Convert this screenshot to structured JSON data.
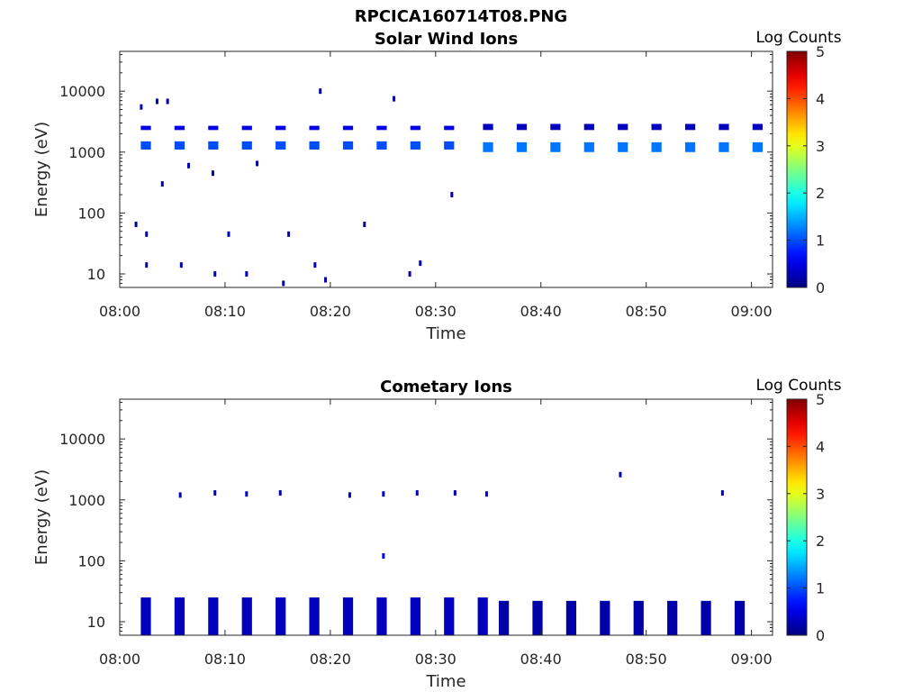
{
  "figure_title": "RPCICA160714T08.PNG",
  "chart_data": [
    {
      "type": "heatmap",
      "title": "Solar Wind Ions",
      "xlabel": "Time",
      "ylabel": "Energy (eV)",
      "x_range": [
        "08:00",
        "09:02"
      ],
      "x_ticks": [
        "08:00",
        "08:10",
        "08:20",
        "08:30",
        "08:40",
        "08:50",
        "09:00"
      ],
      "y_scale": "log",
      "y_range": [
        6,
        45000
      ],
      "y_ticks": [
        "10",
        "100",
        "1000",
        "10000"
      ],
      "colorbar": {
        "label": "Log Counts",
        "min": 0,
        "max": 5,
        "ticks": [
          "0",
          "1",
          "2",
          "3",
          "4",
          "5"
        ],
        "colormap": "jet"
      },
      "bands": [
        {
          "t_start": "08:02",
          "t_end": "08:32",
          "repeat_min": 3.2,
          "e_min": 1100,
          "e_max": 1500,
          "log_counts": 1.0
        },
        {
          "t_start": "08:02",
          "t_end": "08:32",
          "repeat_min": 3.2,
          "e_min": 2300,
          "e_max": 2700,
          "log_counts": 0.5
        },
        {
          "t_start": "08:34.5",
          "t_end": "09:01",
          "repeat_min": 3.2,
          "e_min": 1000,
          "e_max": 1450,
          "log_counts": 1.2
        },
        {
          "t_start": "08:34.5",
          "t_end": "09:01",
          "repeat_min": 3.2,
          "e_min": 2300,
          "e_max": 2900,
          "log_counts": 0.3
        }
      ],
      "sparse_points": [
        {
          "t": "08:01.5",
          "e": 65,
          "log_counts": 0.2
        },
        {
          "t": "08:02",
          "e": 5500,
          "log_counts": 0.2
        },
        {
          "t": "08:02.5",
          "e": 45,
          "log_counts": 0.3
        },
        {
          "t": "08:02.5",
          "e": 14,
          "log_counts": 0.3
        },
        {
          "t": "08:03.5",
          "e": 6800,
          "log_counts": 0.2
        },
        {
          "t": "08:04",
          "e": 300,
          "log_counts": 0.2
        },
        {
          "t": "08:04.5",
          "e": 6800,
          "log_counts": 0.2
        },
        {
          "t": "08:05.8",
          "e": 14,
          "log_counts": 0.3
        },
        {
          "t": "08:06.5",
          "e": 600,
          "log_counts": 0.2
        },
        {
          "t": "08:08.8",
          "e": 450,
          "log_counts": 0.2
        },
        {
          "t": "08:09",
          "e": 10,
          "log_counts": 0.3
        },
        {
          "t": "08:10.3",
          "e": 45,
          "log_counts": 0.3
        },
        {
          "t": "08:12",
          "e": 10,
          "log_counts": 0.3
        },
        {
          "t": "08:13",
          "e": 650,
          "log_counts": 0.2
        },
        {
          "t": "08:15.5",
          "e": 7,
          "log_counts": 0.3
        },
        {
          "t": "08:16",
          "e": 45,
          "log_counts": 0.3
        },
        {
          "t": "08:18.5",
          "e": 14,
          "log_counts": 0.3
        },
        {
          "t": "08:19",
          "e": 10000,
          "log_counts": 0.2
        },
        {
          "t": "08:19.5",
          "e": 8,
          "log_counts": 0.3
        },
        {
          "t": "08:23.2",
          "e": 65,
          "log_counts": 0.2
        },
        {
          "t": "08:26",
          "e": 7500,
          "log_counts": 0.2
        },
        {
          "t": "08:27.5",
          "e": 10,
          "log_counts": 0.3
        },
        {
          "t": "08:28.5",
          "e": 15,
          "log_counts": 0.3
        },
        {
          "t": "08:31.5",
          "e": 200,
          "log_counts": 0.2
        }
      ]
    },
    {
      "type": "heatmap",
      "title": "Cometary Ions",
      "xlabel": "Time",
      "ylabel": "Energy (eV)",
      "x_range": [
        "08:00",
        "09:02"
      ],
      "x_ticks": [
        "08:00",
        "08:10",
        "08:20",
        "08:30",
        "08:40",
        "08:50",
        "09:00"
      ],
      "y_scale": "log",
      "y_range": [
        6,
        45000
      ],
      "y_ticks": [
        "10",
        "100",
        "1000",
        "10000"
      ],
      "colorbar": {
        "label": "Log Counts",
        "min": 0,
        "max": 5,
        "ticks": [
          "0",
          "1",
          "2",
          "3",
          "4",
          "5"
        ],
        "colormap": "jet"
      },
      "bands": [
        {
          "t_start": "08:02",
          "t_end": "08:35",
          "repeat_min": 3.2,
          "e_min": 6,
          "e_max": 25,
          "log_counts": 0.3
        },
        {
          "t_start": "08:36",
          "t_end": "09:01",
          "repeat_min": 3.2,
          "e_min": 6,
          "e_max": 22,
          "log_counts": 0.2
        }
      ],
      "sparse_points": [
        {
          "t": "08:05.7",
          "e": 1200,
          "log_counts": 0.3
        },
        {
          "t": "08:09",
          "e": 1300,
          "log_counts": 0.3
        },
        {
          "t": "08:12",
          "e": 1250,
          "log_counts": 0.3
        },
        {
          "t": "08:15.2",
          "e": 1300,
          "log_counts": 0.3
        },
        {
          "t": "08:21.8",
          "e": 1200,
          "log_counts": 0.3
        },
        {
          "t": "08:25",
          "e": 1250,
          "log_counts": 0.3
        },
        {
          "t": "08:25",
          "e": 120,
          "log_counts": 0.5
        },
        {
          "t": "08:28.2",
          "e": 1300,
          "log_counts": 0.3
        },
        {
          "t": "08:31.8",
          "e": 1300,
          "log_counts": 0.3
        },
        {
          "t": "08:34.8",
          "e": 1250,
          "log_counts": 0.4
        },
        {
          "t": "08:47.5",
          "e": 2600,
          "log_counts": 0.3
        },
        {
          "t": "08:57.2",
          "e": 1300,
          "log_counts": 0.3
        }
      ]
    }
  ]
}
